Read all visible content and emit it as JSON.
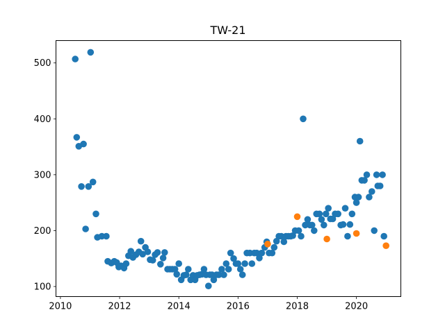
{
  "chart_data": {
    "type": "scatter",
    "title": "TW-21",
    "xlabel": "",
    "ylabel": "",
    "xlim": [
      2009.85,
      2021.5
    ],
    "ylim": [
      82,
      540
    ],
    "xticks": [
      2010,
      2012,
      2014,
      2016,
      2018,
      2020
    ],
    "yticks": [
      100,
      200,
      300,
      400,
      500
    ],
    "grid": false,
    "legend": "none",
    "series": [
      {
        "color": "#1f77b4",
        "points": [
          [
            2010.5,
            507
          ],
          [
            2010.55,
            367
          ],
          [
            2010.62,
            351
          ],
          [
            2010.71,
            279
          ],
          [
            2010.78,
            355
          ],
          [
            2010.85,
            203
          ],
          [
            2010.95,
            279
          ],
          [
            2011.02,
            519
          ],
          [
            2011.1,
            287
          ],
          [
            2011.2,
            230
          ],
          [
            2011.25,
            188
          ],
          [
            2011.4,
            190
          ],
          [
            2011.55,
            190
          ],
          [
            2011.6,
            145
          ],
          [
            2011.72,
            142
          ],
          [
            2011.82,
            145
          ],
          [
            2011.9,
            143
          ],
          [
            2011.97,
            135
          ],
          [
            2012.05,
            137
          ],
          [
            2012.15,
            133
          ],
          [
            2012.22,
            141
          ],
          [
            2012.3,
            155
          ],
          [
            2012.38,
            163
          ],
          [
            2012.45,
            152
          ],
          [
            2012.55,
            157
          ],
          [
            2012.65,
            162
          ],
          [
            2012.72,
            181
          ],
          [
            2012.78,
            158
          ],
          [
            2012.87,
            170
          ],
          [
            2012.95,
            162
          ],
          [
            2013.03,
            148
          ],
          [
            2013.12,
            147
          ],
          [
            2013.2,
            157
          ],
          [
            2013.28,
            161
          ],
          [
            2013.38,
            140
          ],
          [
            2013.47,
            151
          ],
          [
            2013.52,
            161
          ],
          [
            2013.62,
            131
          ],
          [
            2013.7,
            131
          ],
          [
            2013.78,
            131
          ],
          [
            2013.87,
            131
          ],
          [
            2013.93,
            122
          ],
          [
            2014.0,
            141
          ],
          [
            2014.08,
            112
          ],
          [
            2014.17,
            120
          ],
          [
            2014.25,
            121
          ],
          [
            2014.32,
            131
          ],
          [
            2014.4,
            112
          ],
          [
            2014.48,
            120
          ],
          [
            2014.55,
            112
          ],
          [
            2014.62,
            120
          ],
          [
            2014.7,
            121
          ],
          [
            2014.78,
            122
          ],
          [
            2014.85,
            131
          ],
          [
            2014.92,
            121
          ],
          [
            2015.0,
            101
          ],
          [
            2015.05,
            121
          ],
          [
            2015.12,
            121
          ],
          [
            2015.18,
            112
          ],
          [
            2015.27,
            121
          ],
          [
            2015.35,
            121
          ],
          [
            2015.45,
            131
          ],
          [
            2015.52,
            121
          ],
          [
            2015.6,
            141
          ],
          [
            2015.68,
            131
          ],
          [
            2015.75,
            160
          ],
          [
            2015.85,
            150
          ],
          [
            2015.93,
            141
          ],
          [
            2016.0,
            141
          ],
          [
            2016.08,
            131
          ],
          [
            2016.15,
            121
          ],
          [
            2016.23,
            141
          ],
          [
            2016.3,
            160
          ],
          [
            2016.4,
            160
          ],
          [
            2016.47,
            141
          ],
          [
            2016.55,
            160
          ],
          [
            2016.63,
            160
          ],
          [
            2016.72,
            151
          ],
          [
            2016.8,
            160
          ],
          [
            2016.9,
            170
          ],
          [
            2016.97,
            180
          ],
          [
            2017.05,
            160
          ],
          [
            2017.15,
            160
          ],
          [
            2017.22,
            170
          ],
          [
            2017.3,
            181
          ],
          [
            2017.38,
            190
          ],
          [
            2017.46,
            190
          ],
          [
            2017.55,
            180
          ],
          [
            2017.62,
            190
          ],
          [
            2017.7,
            190
          ],
          [
            2017.78,
            190
          ],
          [
            2017.85,
            191
          ],
          [
            2017.93,
            200
          ],
          [
            2018.05,
            200
          ],
          [
            2018.13,
            190
          ],
          [
            2018.2,
            400
          ],
          [
            2018.27,
            210
          ],
          [
            2018.35,
            220
          ],
          [
            2018.43,
            210
          ],
          [
            2018.5,
            210
          ],
          [
            2018.57,
            200
          ],
          [
            2018.65,
            230
          ],
          [
            2018.75,
            230
          ],
          [
            2018.82,
            220
          ],
          [
            2018.9,
            210
          ],
          [
            2018.97,
            230
          ],
          [
            2019.05,
            240
          ],
          [
            2019.12,
            221
          ],
          [
            2019.2,
            221
          ],
          [
            2019.28,
            230
          ],
          [
            2019.38,
            230
          ],
          [
            2019.47,
            210
          ],
          [
            2019.55,
            211
          ],
          [
            2019.62,
            240
          ],
          [
            2019.7,
            190
          ],
          [
            2019.78,
            211
          ],
          [
            2019.85,
            230
          ],
          [
            2019.95,
            260
          ],
          [
            2020.0,
            250
          ],
          [
            2020.07,
            260
          ],
          [
            2020.12,
            360
          ],
          [
            2020.18,
            290
          ],
          [
            2020.27,
            290
          ],
          [
            2020.35,
            300
          ],
          [
            2020.43,
            260
          ],
          [
            2020.52,
            270
          ],
          [
            2020.6,
            200
          ],
          [
            2020.68,
            300
          ],
          [
            2020.72,
            280
          ],
          [
            2020.8,
            280
          ],
          [
            2020.88,
            300
          ],
          [
            2020.93,
            190
          ]
        ]
      },
      {
        "color": "#ff7f0e",
        "points": [
          [
            2017.0,
            176
          ],
          [
            2018.0,
            225
          ],
          [
            2019.0,
            185
          ],
          [
            2020.0,
            195
          ],
          [
            2021.0,
            173
          ]
        ]
      }
    ]
  }
}
